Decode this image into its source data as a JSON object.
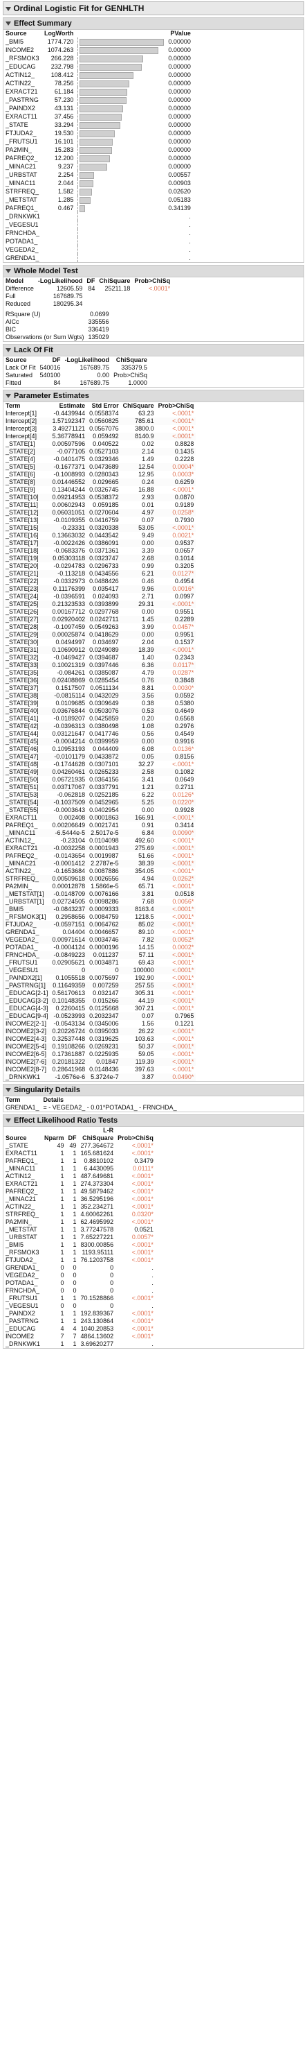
{
  "app_title": "Ordinal Logistic Fit for GENHLTH",
  "effect_summary": {
    "title": "Effect Summary",
    "columns": [
      "Source",
      "LogWorth",
      "",
      "PValue"
    ],
    "rows": [
      {
        "source": "_BMI5",
        "logworth": "1774.720",
        "pvalue": "0.00000",
        "bar": 1774.72
      },
      {
        "source": "INCOME2",
        "logworth": "1074.263",
        "pvalue": "0.00000",
        "bar": 1074.263
      },
      {
        "source": "_RFSMOK3",
        "logworth": "266.228",
        "pvalue": "0.00000",
        "bar": 266.228
      },
      {
        "source": "_EDUCAG",
        "logworth": "232.798",
        "pvalue": "0.00000",
        "bar": 232.798
      },
      {
        "source": "ACTIN12_",
        "logworth": "108.412",
        "pvalue": "0.00000",
        "bar": 108.412
      },
      {
        "source": "ACTIN22_",
        "logworth": "78.256",
        "pvalue": "0.00000",
        "bar": 78.256
      },
      {
        "source": "EXRACT21",
        "logworth": "61.184",
        "pvalue": "0.00000",
        "bar": 61.184
      },
      {
        "source": "_PASTRNG",
        "logworth": "57.230",
        "pvalue": "0.00000",
        "bar": 57.23
      },
      {
        "source": "_PAINDX2",
        "logworth": "43.131",
        "pvalue": "0.00000",
        "bar": 43.131
      },
      {
        "source": "EXRACT11",
        "logworth": "37.456",
        "pvalue": "0.00000",
        "bar": 37.456
      },
      {
        "source": "_STATE",
        "logworth": "33.294",
        "pvalue": "0.00000",
        "bar": 33.294
      },
      {
        "source": "FTJUDA2_",
        "logworth": "19.530",
        "pvalue": "0.00000",
        "bar": 19.53
      },
      {
        "source": "_FRUTSU1",
        "logworth": "16.101",
        "pvalue": "0.00000",
        "bar": 16.101
      },
      {
        "source": "PA2MIN_",
        "logworth": "15.283",
        "pvalue": "0.00000",
        "bar": 15.283
      },
      {
        "source": "PAFREQ2_",
        "logworth": "12.200",
        "pvalue": "0.00000",
        "bar": 12.2
      },
      {
        "source": "_MINAC21",
        "logworth": "9.237",
        "pvalue": "0.00000",
        "bar": 9.237
      },
      {
        "source": "_URBSTAT",
        "logworth": "2.254",
        "pvalue": "0.00557",
        "bar": 2.254
      },
      {
        "source": "_MINAC11",
        "logworth": "2.044",
        "pvalue": "0.00903",
        "bar": 2.044
      },
      {
        "source": "STRFREQ_",
        "logworth": "1.582",
        "pvalue": "0.02620",
        "bar": 1.582
      },
      {
        "source": "_METSTAT",
        "logworth": "1.285",
        "pvalue": "0.05183",
        "bar": 1.285
      },
      {
        "source": "PAFREQ1_",
        "logworth": "0.467",
        "pvalue": "0.34139",
        "bar": 0.467
      },
      {
        "source": "_DRNKWK1",
        "logworth": "",
        "pvalue": ".",
        "bar": 0
      },
      {
        "source": "_VEGESU1",
        "logworth": "",
        "pvalue": ".",
        "bar": 0
      },
      {
        "source": "FRNCHDA_",
        "logworth": "",
        "pvalue": ".",
        "bar": 0
      },
      {
        "source": "POTADA1_",
        "logworth": "",
        "pvalue": ".",
        "bar": 0
      },
      {
        "source": "VEGEDA2_",
        "logworth": "",
        "pvalue": ".",
        "bar": 0
      },
      {
        "source": "GRENDA1_",
        "logworth": "",
        "pvalue": ".",
        "bar": 0
      }
    ]
  },
  "whole_model": {
    "title": "Whole Model Test",
    "columns": [
      "Model",
      "-LogLikelihood",
      "DF",
      "ChiSquare",
      "Prob>ChiSq"
    ],
    "rows": [
      [
        "Difference",
        "12605.59",
        "84",
        "25211.18",
        "<.0001*"
      ],
      [
        "Full",
        "167689.75",
        "",
        "",
        ""
      ],
      [
        "Reduced",
        "180295.34",
        "",
        "",
        ""
      ]
    ],
    "stats": [
      [
        "RSquare (U)",
        "0.0699"
      ],
      [
        "AICc",
        "335556"
      ],
      [
        "BIC",
        "336419"
      ],
      [
        "Observations (or Sum Wgts)",
        "135029"
      ]
    ]
  },
  "lack_of_fit": {
    "title": "Lack Of Fit",
    "columns": [
      "Source",
      "DF",
      "-LogLikelihood",
      "ChiSquare"
    ],
    "rows": [
      [
        "Lack Of Fit",
        "540016",
        "167689.75",
        "335379.5"
      ],
      [
        "Saturated",
        "540100",
        "0.00",
        "Prob>ChiSq"
      ],
      [
        "Fitted",
        "84",
        "167689.75",
        "1.0000"
      ]
    ]
  },
  "parameter_estimates": {
    "title": "Parameter Estimates",
    "columns": [
      "Term",
      "Estimate",
      "Std Error",
      "ChiSquare",
      "Prob>ChiSq"
    ],
    "rows": [
      [
        "Intercept[1]",
        "-0.4439944",
        "0.0558374",
        "63.23",
        "<.0001*"
      ],
      [
        "Intercept[2]",
        "1.57192347",
        "0.0560825",
        "785.61",
        "<.0001*"
      ],
      [
        "Intercept[3]",
        "3.49271121",
        "0.0567076",
        "3800.0",
        "<.0001*"
      ],
      [
        "Intercept[4]",
        "5.36778941",
        "0.059492",
        "8140.9",
        "<.0001*"
      ],
      [
        "_STATE[1]",
        "0.00597596",
        "0.040522",
        "0.02",
        "0.8828"
      ],
      [
        "_STATE[2]",
        "-0.077105",
        "0.0527103",
        "2.14",
        "0.1435"
      ],
      [
        "_STATE[4]",
        "-0.0401475",
        "0.0329346",
        "1.49",
        "0.2228"
      ],
      [
        "_STATE[5]",
        "-0.1677371",
        "0.0473689",
        "12.54",
        "0.0004*"
      ],
      [
        "_STATE[6]",
        "-0.1008993",
        "0.0280343",
        "12.95",
        "0.0003*"
      ],
      [
        "_STATE[8]",
        "0.01446552",
        "0.029665",
        "0.24",
        "0.6259"
      ],
      [
        "_STATE[9]",
        "0.13404244",
        "0.0326745",
        "16.88",
        "<.0001*"
      ],
      [
        "_STATE[10]",
        "0.09214953",
        "0.0538372",
        "2.93",
        "0.0870"
      ],
      [
        "_STATE[11]",
        "0.00602943",
        "0.059185",
        "0.01",
        "0.9189"
      ],
      [
        "_STATE[12]",
        "0.06031051",
        "0.0270604",
        "4.97",
        "0.0258*"
      ],
      [
        "_STATE[13]",
        "-0.0109355",
        "0.0416759",
        "0.07",
        "0.7930"
      ],
      [
        "_STATE[15]",
        "-0.23331",
        "0.0320338",
        "53.05",
        "<.0001*"
      ],
      [
        "_STATE[16]",
        "0.13663032",
        "0.0443542",
        "9.49",
        "0.0021*"
      ],
      [
        "_STATE[17]",
        "-0.0022426",
        "0.0386091",
        "0.00",
        "0.9537"
      ],
      [
        "_STATE[18]",
        "-0.0683376",
        "0.0371361",
        "3.39",
        "0.0657"
      ],
      [
        "_STATE[19]",
        "0.05303118",
        "0.0323747",
        "2.68",
        "0.1014"
      ],
      [
        "_STATE[20]",
        "-0.0294783",
        "0.0296733",
        "0.99",
        "0.3205"
      ],
      [
        "_STATE[21]",
        "-0.113218",
        "0.0434556",
        "6.21",
        "0.0127*"
      ],
      [
        "_STATE[22]",
        "-0.0332973",
        "0.0488426",
        "0.46",
        "0.4954"
      ],
      [
        "_STATE[23]",
        "0.11176399",
        "0.035417",
        "9.96",
        "0.0016*"
      ],
      [
        "_STATE[24]",
        "-0.0396591",
        "0.024093",
        "2.71",
        "0.0997"
      ],
      [
        "_STATE[25]",
        "0.21323533",
        "0.0393899",
        "29.31",
        "<.0001*"
      ],
      [
        "_STATE[26]",
        "0.00167712",
        "0.0297768",
        "0.00",
        "0.9551"
      ],
      [
        "_STATE[27]",
        "0.02920402",
        "0.0242711",
        "1.45",
        "0.2289"
      ],
      [
        "_STATE[28]",
        "-0.1097459",
        "0.0549263",
        "3.99",
        "0.0457*"
      ],
      [
        "_STATE[29]",
        "0.00025874",
        "0.0418629",
        "0.00",
        "0.9951"
      ],
      [
        "_STATE[30]",
        "0.0494997",
        "0.034697",
        "2.04",
        "0.1537"
      ],
      [
        "_STATE[31]",
        "0.10690912",
        "0.0249089",
        "18.39",
        "<.0001*"
      ],
      [
        "_STATE[32]",
        "-0.0469427",
        "0.0394687",
        "1.40",
        "0.2343"
      ],
      [
        "_STATE[33]",
        "0.10021319",
        "0.0397446",
        "6.36",
        "0.0117*"
      ],
      [
        "_STATE[35]",
        "-0.084261",
        "0.0385087",
        "4.79",
        "0.0287*"
      ],
      [
        "_STATE[36]",
        "0.02408869",
        "0.0285454",
        "0.76",
        "0.3848"
      ],
      [
        "_STATE[37]",
        "0.1517507",
        "0.0511134",
        "8.81",
        "0.0030*"
      ],
      [
        "_STATE[38]",
        "-0.0815114",
        "0.0432029",
        "3.56",
        "0.0592"
      ],
      [
        "_STATE[39]",
        "0.0109685",
        "0.0309649",
        "0.38",
        "0.5380"
      ],
      [
        "_STATE[40]",
        "0.03676844",
        "0.0503076",
        "0.53",
        "0.4649"
      ],
      [
        "_STATE[41]",
        "-0.0189207",
        "0.0425859",
        "0.20",
        "0.6568"
      ],
      [
        "_STATE[42]",
        "-0.0396313",
        "0.0380498",
        "1.08",
        "0.2976"
      ],
      [
        "_STATE[44]",
        "0.03121647",
        "0.0417746",
        "0.56",
        "0.4549"
      ],
      [
        "_STATE[45]",
        "-0.0004214",
        "0.0399959",
        "0.00",
        "0.9916"
      ],
      [
        "_STATE[46]",
        "0.10953193",
        "0.044409",
        "6.08",
        "0.0136*"
      ],
      [
        "_STATE[47]",
        "-0.0101179",
        "0.0433872",
        "0.05",
        "0.8156"
      ],
      [
        "_STATE[48]",
        "-0.1744628",
        "0.0307101",
        "32.27",
        "<.0001*"
      ],
      [
        "_STATE[49]",
        "0.04260461",
        "0.0265233",
        "2.58",
        "0.1082"
      ],
      [
        "_STATE[50]",
        "0.06721935",
        "0.0364156",
        "3.41",
        "0.0649"
      ],
      [
        "_STATE[51]",
        "0.03717067",
        "0.0337791",
        "1.21",
        "0.2711"
      ],
      [
        "_STATE[53]",
        "-0.062818",
        "0.0252185",
        "6.22",
        "0.0126*"
      ],
      [
        "_STATE[54]",
        "-0.1037509",
        "0.0452965",
        "5.25",
        "0.0220*"
      ],
      [
        "_STATE[55]",
        "-0.0003643",
        "0.0402954",
        "0.00",
        "0.9928"
      ],
      [
        "EXRACT11",
        "0.002408",
        "0.0001863",
        "166.91",
        "<.0001*"
      ],
      [
        "PAFREQ1_",
        "0.00206649",
        "0.0021741",
        "0.91",
        "0.3414"
      ],
      [
        "_MINAC11",
        "-6.5444e-5",
        "2.5017e-5",
        "6.84",
        "0.0090*"
      ],
      [
        "ACTIN12_",
        "-0.23104",
        "0.0104098",
        "492.60",
        "<.0001*"
      ],
      [
        "EXRACT21",
        "-0.0032258",
        "0.0001943",
        "275.69",
        "<.0001*"
      ],
      [
        "PAFREQ2_",
        "-0.0143654",
        "0.0019987",
        "51.66",
        "<.0001*"
      ],
      [
        "_MINAC21",
        "-0.0001412",
        "2.2787e-5",
        "38.39",
        "<.0001*"
      ],
      [
        "ACTIN22_",
        "-0.1653684",
        "0.0087886",
        "354.05",
        "<.0001*"
      ],
      [
        "STRFREQ_",
        "0.00509618",
        "0.0026556",
        "4.94",
        "0.0262*"
      ],
      [
        "PA2MIN_",
        "0.00012878",
        "1.5866e-5",
        "65.71",
        "<.0001*"
      ],
      [
        "_METSTAT[1]",
        "-0.0148709",
        "0.0076166",
        "3.81",
        "0.0518"
      ],
      [
        "_URBSTAT[1]",
        "0.02724505",
        "0.0098286",
        "7.68",
        "0.0056*"
      ],
      [
        "_BMI5",
        "-0.0843237",
        "0.0009333",
        "8163.4",
        "<.0001*"
      ],
      [
        "_RFSMOK3[1]",
        "0.2958656",
        "0.0084759",
        "1218.5",
        "<.0001*"
      ],
      [
        "FTJUDA2_",
        "-0.0597151",
        "0.0064762",
        "85.02",
        "<.0001*"
      ],
      [
        "GRENDA1_",
        "0.04404",
        "0.0046657",
        "89.10",
        "<.0001*"
      ],
      [
        "VEGEDA2_",
        "0.00971614",
        "0.0034746",
        "7.82",
        "0.0052*"
      ],
      [
        "POTADA1_",
        "-0.0004124",
        "0.0000196",
        "14.15",
        "0.0002*"
      ],
      [
        "FRNCHDA_",
        "-0.0849223",
        "0.011237",
        "57.11",
        "<.0001*"
      ],
      [
        "_FRUTSU1",
        "0.02905621",
        "0.0034871",
        "69.43",
        "<.0001*"
      ],
      [
        "_VEGESU1",
        "0",
        "0",
        "100000",
        "<.0001*"
      ],
      [
        "_PAINDX2[1]",
        "0.1055518",
        "0.0075697",
        "192.90",
        "<.0001*"
      ],
      [
        "_PASTRNG[1]",
        "0.11649359",
        "0.007259",
        "257.55",
        "<.0001*"
      ],
      [
        "_EDUCAG[2-1]",
        "0.56170613",
        "0.032147",
        "305.31",
        "<.0001*"
      ],
      [
        "_EDUCAG[3-2]",
        "0.10148355",
        "0.015266",
        "44.19",
        "<.0001*"
      ],
      [
        "_EDUCAG[4-3]",
        "0.2260415",
        "0.0125668",
        "307.21",
        "<.0001*"
      ],
      [
        "_EDUCAG[9-4]",
        "-0.0523993",
        "0.2032347",
        "0.07",
        "0.7965"
      ],
      [
        "INCOME2[2-1]",
        "-0.0543134",
        "0.0345006",
        "1.56",
        "0.1221"
      ],
      [
        "INCOME2[3-2]",
        "0.20226724",
        "0.0395033",
        "26.22",
        "<.0001*"
      ],
      [
        "INCOME2[4-3]",
        "0.32537448",
        "0.0319625",
        "103.63",
        "<.0001*"
      ],
      [
        "INCOME2[5-4]",
        "0.19108266",
        "0.0269231",
        "50.37",
        "<.0001*"
      ],
      [
        "INCOME2[6-5]",
        "0.17361887",
        "0.0225935",
        "59.05",
        "<.0001*"
      ],
      [
        "INCOME2[7-6]",
        "0.20181322",
        "0.01847",
        "119.39",
        "<.0001*"
      ],
      [
        "INCOME2[8-7]",
        "0.28641968",
        "0.0148436",
        "397.63",
        "<.0001*"
      ],
      [
        "_DRNKWK1",
        "-1.0576e-6",
        "5.3724e-7",
        "3.87",
        "0.0490*"
      ]
    ]
  },
  "singularity": {
    "title": "Singularity Details",
    "columns": [
      "Term",
      "Details"
    ],
    "row": [
      "GRENDA1_",
      "= - VEGEDA2_ - 0.01*POTADA1_ - FRNCHDA_"
    ]
  },
  "lr_tests": {
    "title": "Effect Likelihood Ratio Tests",
    "subheader": "L-R",
    "columns": [
      "Source",
      "Nparm",
      "DF",
      "ChiSquare",
      "Prob>ChiSq"
    ],
    "rows": [
      [
        "_STATE",
        "49",
        "49",
        "277.364672",
        "<.0001*"
      ],
      [
        "EXRACT11",
        "1",
        "1",
        "165.681624",
        "<.0001*"
      ],
      [
        "PAFREQ1_",
        "1",
        "1",
        "0.8810102",
        "0.3479"
      ],
      [
        "_MINAC11",
        "1",
        "1",
        "6.4430095",
        "0.0111*"
      ],
      [
        "ACTIN12_",
        "1",
        "1",
        "487.649681",
        "<.0001*"
      ],
      [
        "EXRACT21",
        "1",
        "1",
        "274.373304",
        "<.0001*"
      ],
      [
        "PAFREQ2_",
        "1",
        "1",
        "49.5879462",
        "<.0001*"
      ],
      [
        "_MINAC21",
        "1",
        "1",
        "36.5295196",
        "<.0001*"
      ],
      [
        "ACTIN22_",
        "1",
        "1",
        "352.234271",
        "<.0001*"
      ],
      [
        "STRFREQ_",
        "1",
        "1",
        "4.60062261",
        "0.0320*"
      ],
      [
        "PA2MIN_",
        "1",
        "1",
        "62.4695992",
        "<.0001*"
      ],
      [
        "_METSTAT",
        "1",
        "1",
        "3.77247578",
        "0.0521"
      ],
      [
        "_URBSTAT",
        "1",
        "1",
        "7.65227221",
        "0.0057*"
      ],
      [
        "_BMI5",
        "1",
        "1",
        "8300.00856",
        "<.0001*"
      ],
      [
        "_RFSMOK3",
        "1",
        "1",
        "1193.95111",
        "<.0001*"
      ],
      [
        "FTJUDA2_",
        "1",
        "1",
        "76.1203758",
        "<.0001*"
      ],
      [
        "GRENDA1_",
        "0",
        "0",
        "0",
        "."
      ],
      [
        "VEGEDA2_",
        "0",
        "0",
        "0",
        "."
      ],
      [
        "POTADA1_",
        "0",
        "0",
        "0",
        "."
      ],
      [
        "FRNCHDA_",
        "0",
        "0",
        "0",
        "."
      ],
      [
        "_FRUTSU1",
        "1",
        "1",
        "70.1528866",
        "<.0001*"
      ],
      [
        "_VEGESU1",
        "0",
        "0",
        "0",
        "."
      ],
      [
        "_PAINDX2",
        "1",
        "1",
        "192.839367",
        "<.0001*"
      ],
      [
        "_PASTRNG",
        "1",
        "1",
        "243.130864",
        "<.0001*"
      ],
      [
        "_EDUCAG",
        "4",
        "4",
        "1040.20853",
        "<.0001*"
      ],
      [
        "INCOME2",
        "7",
        "7",
        "4864.13602",
        "<.0001*"
      ],
      [
        "_DRNKWK1",
        "1",
        "1",
        "3.69620277",
        "."
      ]
    ]
  }
}
